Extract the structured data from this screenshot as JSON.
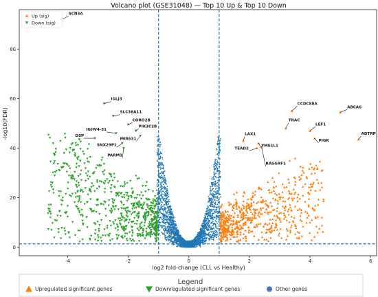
{
  "chart_data": {
    "type": "scatter",
    "title": "Volcano plot (GSE31048) — Top 10 Up & Top 10 Down",
    "xlabel": "log2 fold-change (CLL vs Healthy)",
    "ylabel": "-log10(FDR)",
    "xlim": [
      -5.6,
      6.2
    ],
    "ylim": [
      -3.5,
      96
    ],
    "xticks": [
      -4,
      -2,
      0,
      2,
      4,
      6
    ],
    "yticks": [
      0,
      20,
      40,
      60,
      80
    ],
    "thresholds": {
      "logfc": [
        -1,
        1
      ],
      "neg_log10_fdr": 1.3
    },
    "grid": false,
    "legend_position": "top-left",
    "colors": {
      "up": "#ff7f0e",
      "down": "#2ca02c",
      "other": "#1f77b4",
      "threshold": "#1f77b4"
    },
    "series": [
      {
        "name": "Up (sig)",
        "marker": "triangle-up",
        "color": "#ff7f0e"
      },
      {
        "name": "Down (sig)",
        "marker": "triangle-down",
        "color": "#2ca02c"
      }
    ],
    "labeled_genes": [
      {
        "label": "SCN3A",
        "x": -4.2,
        "y": 92,
        "dir": "down"
      },
      {
        "label": "IGLJ3",
        "x": -2.8,
        "y": 58,
        "dir": "down"
      },
      {
        "label": "SLC38A11",
        "x": -2.5,
        "y": 53,
        "dir": "down"
      },
      {
        "label": "CORO2B",
        "x": -2.0,
        "y": 49.5,
        "dir": "down"
      },
      {
        "label": "IGHV4-31",
        "x": -2.4,
        "y": 46,
        "dir": "down"
      },
      {
        "label": "PIK3C2B",
        "x": -1.75,
        "y": 47,
        "dir": "down"
      },
      {
        "label": "MIR631",
        "x": -1.6,
        "y": 45,
        "dir": "down"
      },
      {
        "label": "DSP",
        "x": -3.1,
        "y": 44,
        "dir": "down"
      },
      {
        "label": "SNX29P1",
        "x": -2.2,
        "y": 42,
        "dir": "down"
      },
      {
        "label": "PARM1",
        "x": -2.15,
        "y": 40,
        "dir": "down"
      },
      {
        "label": "CCDC88A",
        "x": 3.4,
        "y": 55,
        "dir": "up"
      },
      {
        "label": "ABCA6",
        "x": 5.0,
        "y": 54.5,
        "dir": "up"
      },
      {
        "label": "LEF1",
        "x": 4.0,
        "y": 47,
        "dir": "up"
      },
      {
        "label": "TRAC",
        "x": 3.2,
        "y": 48,
        "dir": "up"
      },
      {
        "label": "ADTRP",
        "x": 5.6,
        "y": 43.5,
        "dir": "up"
      },
      {
        "label": "LAX1",
        "x": 1.8,
        "y": 43,
        "dir": "up"
      },
      {
        "label": "PIGR",
        "x": 4.15,
        "y": 44,
        "dir": "up"
      },
      {
        "label": "TEAD2",
        "x": 2.25,
        "y": 40,
        "dir": "up"
      },
      {
        "label": "YME1L1",
        "x": 2.3,
        "y": 42,
        "dir": "up"
      },
      {
        "label": "RASGRF1",
        "x": 2.4,
        "y": 40.5,
        "dir": "up"
      }
    ],
    "bottom_legend": {
      "title": "Legend",
      "items": [
        {
          "label": "Upregulated significant genes",
          "marker": "triangle-up",
          "color": "#ff7f0e"
        },
        {
          "label": "Downregulated significant genes",
          "marker": "triangle-down",
          "color": "#2ca02c"
        },
        {
          "label": "Other genes",
          "marker": "circle",
          "color": "#4c72b0"
        }
      ]
    }
  }
}
